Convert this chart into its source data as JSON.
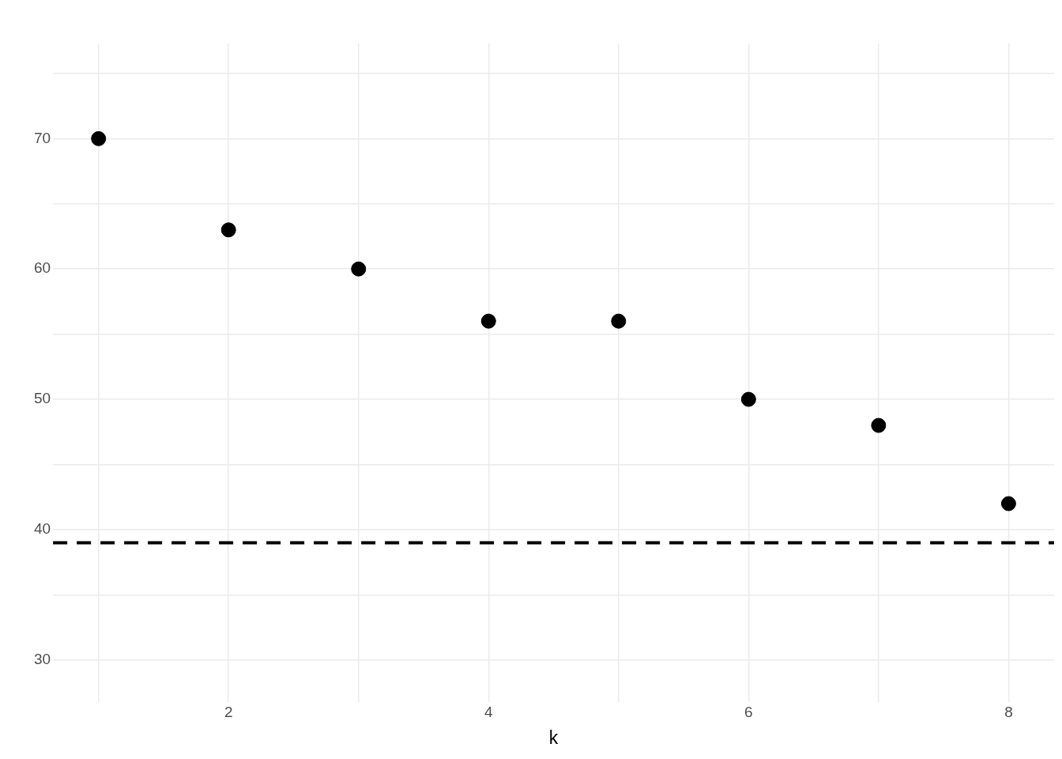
{
  "chart_data": {
    "type": "scatter",
    "xlabel": "k",
    "x": [
      1,
      2,
      3,
      4,
      5,
      6,
      7,
      8
    ],
    "values": [
      70,
      63,
      60,
      56,
      56,
      50,
      48,
      42
    ],
    "color": "#000000",
    "marker": "circle",
    "xlim": [
      0.65,
      8.35
    ],
    "xticks": [
      {
        "value": 1,
        "label": null
      },
      2,
      {
        "value": 3,
        "label": null
      },
      4,
      {
        "value": 5,
        "label": null
      },
      6,
      {
        "value": 7,
        "label": null
      },
      8
    ],
    "ylim": [
      26.8,
      77.3
    ],
    "yticks": [
      30,
      {
        "value": 35,
        "label": null
      },
      40,
      {
        "value": 45,
        "label": null
      },
      50,
      {
        "value": 55,
        "label": null
      },
      60,
      {
        "value": 65,
        "label": null
      },
      70,
      {
        "value": 75,
        "label": null
      }
    ],
    "grid": true,
    "legend": false,
    "ref_lines": [
      {
        "axis": "y",
        "value": 39,
        "color": "#000000",
        "line_style": "dashed"
      }
    ]
  }
}
